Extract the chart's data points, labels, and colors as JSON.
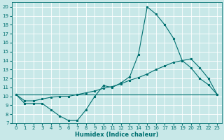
{
  "title": "",
  "xlabel": "Humidex (Indice chaleur)",
  "bg_color": "#c8e8e8",
  "grid_color": "#ffffff",
  "line_color": "#007070",
  "xlim": [
    -0.5,
    23.5
  ],
  "ylim": [
    7,
    20.5
  ],
  "xticks": [
    0,
    1,
    2,
    3,
    4,
    5,
    6,
    7,
    8,
    9,
    10,
    11,
    12,
    13,
    14,
    15,
    16,
    17,
    18,
    19,
    20,
    21,
    22,
    23
  ],
  "yticks": [
    7,
    8,
    9,
    10,
    11,
    12,
    13,
    14,
    15,
    16,
    17,
    18,
    19,
    20
  ],
  "line1_x": [
    0,
    1,
    2,
    3,
    4,
    5,
    6,
    7,
    8,
    9,
    10,
    11,
    12,
    13,
    14,
    15,
    16,
    17,
    18,
    19,
    20,
    21,
    22,
    23
  ],
  "line1_y": [
    10.2,
    9.2,
    9.2,
    9.2,
    8.5,
    7.8,
    7.3,
    7.3,
    8.5,
    10.0,
    11.2,
    11.0,
    11.5,
    12.2,
    14.7,
    20.0,
    19.2,
    18.0,
    16.5,
    14.0,
    13.2,
    12.0,
    11.3,
    10.2
  ],
  "line2_x": [
    0,
    1,
    2,
    3,
    4,
    5,
    6,
    7,
    8,
    9,
    10,
    11,
    12,
    13,
    14,
    15,
    16,
    17,
    18,
    19,
    20,
    21,
    22,
    23
  ],
  "line2_y": [
    10.2,
    9.5,
    9.5,
    9.7,
    9.9,
    10.0,
    10.0,
    10.2,
    10.4,
    10.6,
    10.9,
    11.1,
    11.4,
    11.8,
    12.1,
    12.5,
    13.0,
    13.4,
    13.8,
    14.0,
    14.2,
    13.2,
    12.0,
    10.2
  ],
  "line3_x": [
    0,
    23
  ],
  "line3_y": [
    10.2,
    10.2
  ],
  "lw": 0.8,
  "ms": 2.0,
  "tick_fontsize": 5,
  "xlabel_fontsize": 6
}
